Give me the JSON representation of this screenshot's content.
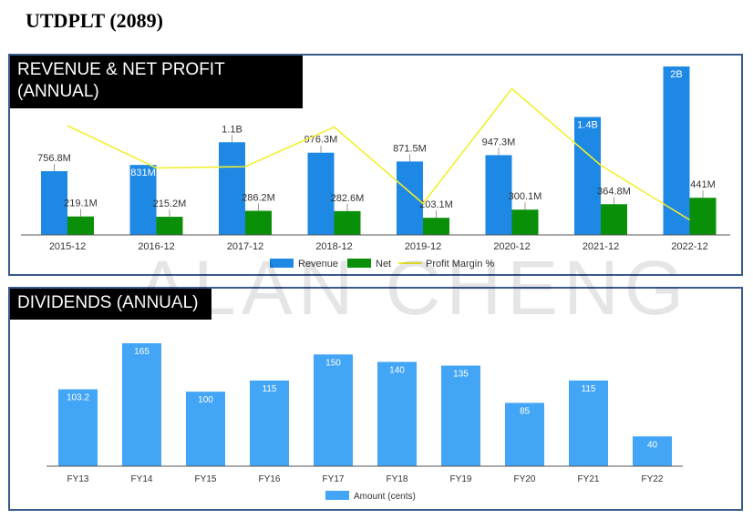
{
  "page": {
    "title": "UTDPLT (2089)",
    "watermark": "ALAN CHENG"
  },
  "panels": {
    "revenue": {
      "header": "REVENUE & NET PROFIT (ANNUAL)"
    },
    "dividends": {
      "header": "DIVIDENDS (ANNUAL)"
    }
  },
  "chart_data": [
    {
      "type": "bar",
      "categories": [
        "2015-12",
        "2016-12",
        "2017-12",
        "2018-12",
        "2019-12",
        "2020-12",
        "2021-12",
        "2022-12"
      ],
      "series": [
        {
          "name": "Revenue",
          "values": [
            756.8,
            831,
            1100,
            976.3,
            871.5,
            947.3,
            1400,
            2000
          ],
          "labels": [
            "756.8M",
            "831M",
            "1.1B",
            "976.3M",
            "871.5M",
            "947.3M",
            "1.4B",
            "2B"
          ],
          "color": "#1e88e5"
        },
        {
          "name": "Net",
          "values": [
            219.1,
            215.2,
            286.2,
            282.6,
            203.1,
            300.1,
            364.8,
            441
          ],
          "labels": [
            "219.1M",
            "215.2M",
            "286.2M",
            "282.6M",
            "203.1M",
            "300.1M",
            "364.8M",
            "441M"
          ],
          "color": "#0a8f08"
        },
        {
          "name": "Profit Margin %",
          "type": "line",
          "values": [
            29.0,
            25.9,
            26.0,
            28.9,
            23.3,
            31.7,
            26.1,
            22.1
          ],
          "color": "#f2ee2e"
        }
      ],
      "ylim": [
        0,
        2000
      ],
      "legend": "bottom-center",
      "grid": false
    },
    {
      "type": "bar",
      "categories": [
        "FY13",
        "FY14",
        "FY15",
        "FY16",
        "FY17",
        "FY18",
        "FY19",
        "FY20",
        "FY21",
        "FY22"
      ],
      "series": [
        {
          "name": "Amount (cents)",
          "values": [
            103.2,
            165,
            100,
            115,
            150,
            140,
            135,
            85,
            115,
            40
          ],
          "labels": [
            "103.2",
            "165",
            "100",
            "115",
            "150",
            "140",
            "135",
            "85",
            "115",
            "40"
          ],
          "color": "#42a5f5"
        }
      ],
      "ylim": [
        0,
        165
      ],
      "legend": "bottom-center",
      "grid": false
    }
  ]
}
